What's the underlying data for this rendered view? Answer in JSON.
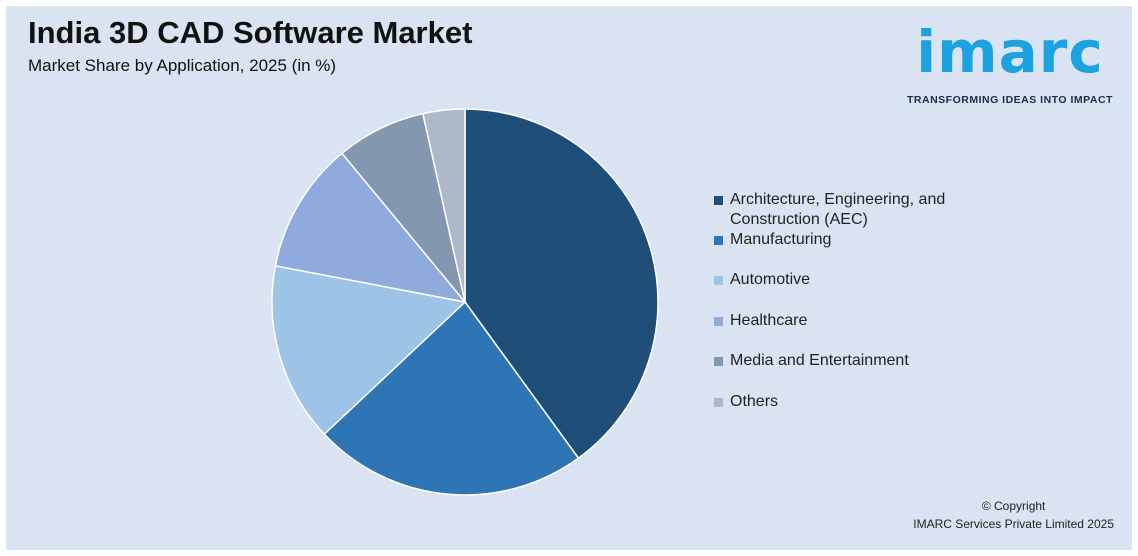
{
  "header": {
    "title": "India 3D CAD Software Market",
    "subtitle": "Market Share by Application, 2025 (in %)"
  },
  "logo": {
    "word": "imarc",
    "tagline": "TRANSFORMING IDEAS INTO IMPACT",
    "color": "#1aa3e0"
  },
  "footer": {
    "copyright_line1": "© Copyright",
    "copyright_line2": "IMARC Services Private Limited 2025"
  },
  "chart_data": {
    "type": "pie",
    "title": "India 3D CAD Software Market",
    "subtitle": "Market Share by Application, 2025 (in %)",
    "categories": [
      "Architecture, Engineering, and Construction (AEC)",
      "Manufacturing",
      "Automotive",
      "Healthcare",
      "Media and Entertainment",
      "Others"
    ],
    "legend_lines": [
      [
        "Architecture, Engineering, and",
        "Construction (AEC)"
      ],
      [
        "Manufacturing"
      ],
      [
        "Automotive"
      ],
      [
        "Healthcare"
      ],
      [
        "Media and Entertainment"
      ],
      [
        "Others"
      ]
    ],
    "values": [
      40,
      23,
      15,
      11,
      7.5,
      3.5
    ],
    "colors": [
      "#1f4e79",
      "#2e75b6",
      "#9dc3e6",
      "#8faadc",
      "#8497b0",
      "#adb9ca"
    ],
    "start_angle_deg": 0,
    "direction": "clockwise",
    "legend_position": "right"
  }
}
